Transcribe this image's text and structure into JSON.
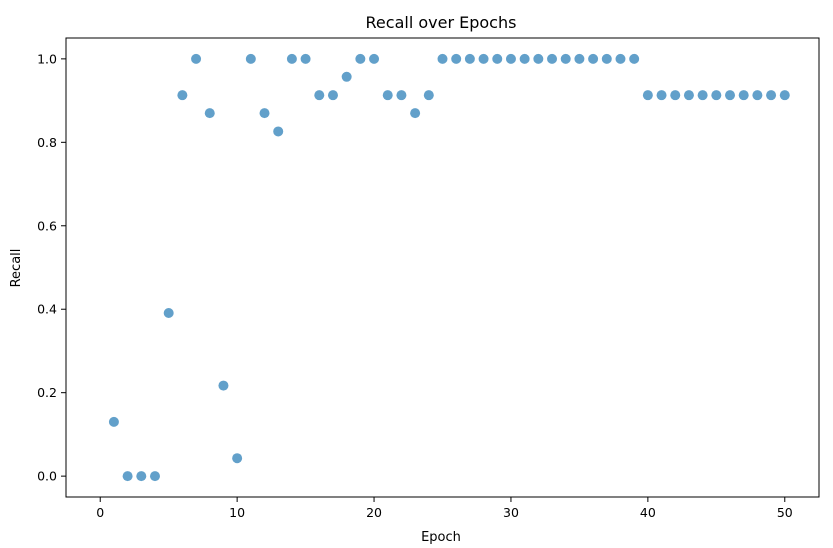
{
  "chart_data": {
    "type": "scatter",
    "title": "Recall over Epochs",
    "xlabel": "Epoch",
    "ylabel": "Recall",
    "xlim": [
      -2.5,
      52.5
    ],
    "ylim": [
      -0.05,
      1.05
    ],
    "xticks": [
      0,
      10,
      20,
      30,
      40,
      50
    ],
    "yticks": [
      0.0,
      0.2,
      0.4,
      0.6,
      0.8,
      1.0
    ],
    "xtick_labels": [
      "0",
      "10",
      "20",
      "30",
      "40",
      "50"
    ],
    "ytick_labels": [
      "0.0",
      "0.2",
      "0.4",
      "0.6",
      "0.8",
      "1.0"
    ],
    "grid": false,
    "marker_color": "#1f77b4",
    "marker_alpha": 0.7,
    "x": [
      1,
      2,
      3,
      4,
      5,
      6,
      7,
      8,
      9,
      10,
      11,
      12,
      13,
      14,
      15,
      16,
      17,
      18,
      19,
      20,
      21,
      22,
      23,
      24,
      25,
      26,
      27,
      28,
      29,
      30,
      31,
      32,
      33,
      34,
      35,
      36,
      37,
      38,
      39,
      40,
      41,
      42,
      43,
      44,
      45,
      46,
      47,
      48,
      49,
      50
    ],
    "y": [
      0.13,
      0.0,
      0.0,
      0.0,
      0.391,
      0.913,
      1.0,
      0.87,
      0.217,
      0.043,
      1.0,
      0.87,
      0.826,
      1.0,
      1.0,
      0.913,
      0.913,
      0.957,
      1.0,
      1.0,
      0.913,
      0.913,
      0.87,
      0.913,
      1.0,
      1.0,
      1.0,
      1.0,
      1.0,
      1.0,
      1.0,
      1.0,
      1.0,
      1.0,
      1.0,
      1.0,
      1.0,
      1.0,
      1.0,
      0.913,
      0.913,
      0.913,
      0.913,
      0.913,
      0.913,
      0.913,
      0.913,
      0.913,
      0.913,
      0.913
    ]
  }
}
